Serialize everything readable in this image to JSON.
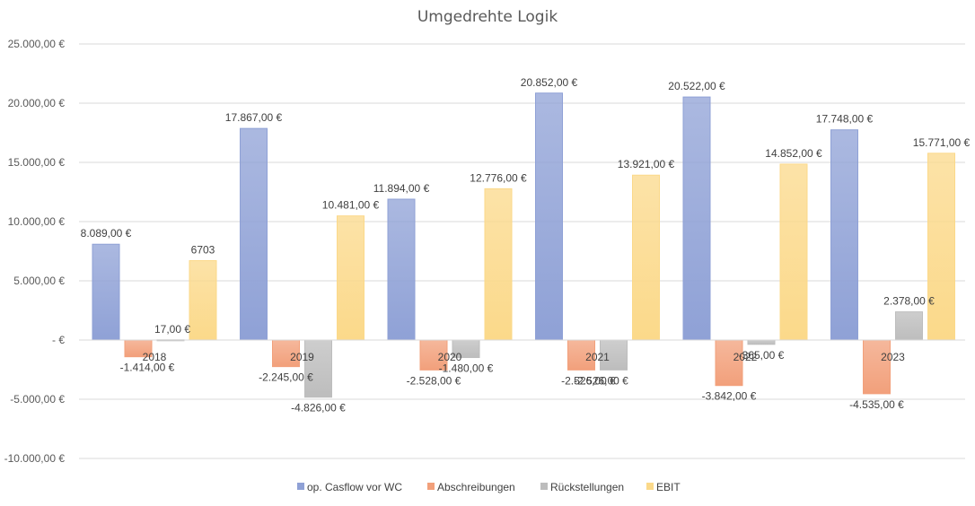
{
  "chart_data": {
    "type": "bar",
    "title": "Umgedrehte Logik",
    "categories": [
      "2018",
      "2019",
      "2020",
      "2021",
      "2022",
      "2023"
    ],
    "series": [
      {
        "name": "op. Casflow vor WC",
        "color": "#8fa1d6",
        "values": [
          8089,
          17867,
          11894,
          20852,
          20522,
          17748
        ],
        "labels": [
          "8.089,00 €",
          "17.867,00 €",
          "11.894,00 €",
          "20.852,00 €",
          "20.522,00 €",
          "17.748,00 €"
        ]
      },
      {
        "name": "Abschreibungen",
        "color": "#f2a07b",
        "values": [
          -1414,
          -2245,
          -2528,
          -2526,
          -3842,
          -4535
        ],
        "labels": [
          "-1.414,00 €",
          "-2.245,00 €",
          "-2.528,00 €",
          "-2.526,00 €",
          "-3.842,00 €",
          "-4.535,00 €"
        ]
      },
      {
        "name": "Rückstellungen",
        "color": "#bdbdbd",
        "values": [
          17,
          -4826,
          -1480,
          -2526,
          -365,
          2378
        ],
        "labels": [
          "17,00 €",
          "-4.826,00 €",
          "-1.480,00 €",
          "-2.526,00 €",
          "-365,00 €",
          "2.378,00 €"
        ]
      },
      {
        "name": "EBIT",
        "color": "#fbd98a",
        "values": [
          6703,
          10481,
          12776,
          13921,
          14852,
          15771
        ],
        "labels": [
          "6703",
          "10.481,00 €",
          "12.776,00 €",
          "13.921,00 €",
          "14.852,00 €",
          "15.771,00 €"
        ]
      }
    ],
    "ylim": [
      -10000,
      25000
    ],
    "yticks": [
      25000,
      20000,
      15000,
      10000,
      5000,
      0,
      -5000,
      -10000
    ],
    "ytick_labels": [
      "25.000,00 €",
      "20.000,00 €",
      "15.000,00 €",
      "10.000,00 €",
      "5.000,00 €",
      " -  €",
      "-5.000,00 €",
      "-10.000,00 €"
    ],
    "grid": true,
    "legend": "bottom"
  }
}
